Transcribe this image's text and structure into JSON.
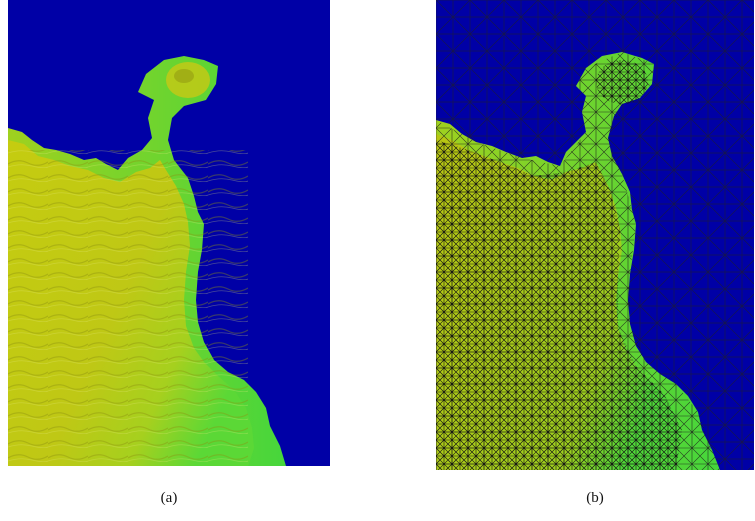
{
  "figure": {
    "panels": [
      {
        "label": "(a)",
        "content": "terrain-height-map"
      },
      {
        "label": "(b)",
        "content": "terrain-height-map-with-adaptive-triangular-mesh"
      }
    ]
  },
  "colors": {
    "water": "#0000a6",
    "land_high": "#c5cc10",
    "land_low": "#4ed83a",
    "mesh_line": "#141414"
  }
}
